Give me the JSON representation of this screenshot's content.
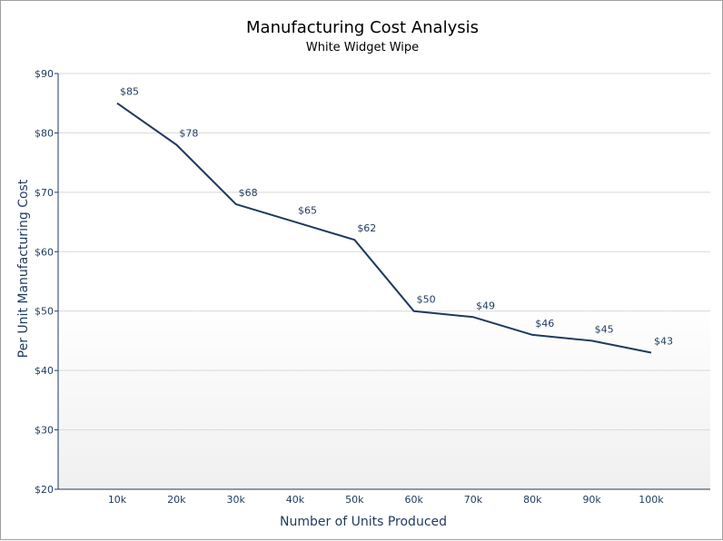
{
  "chart_data": {
    "type": "line",
    "title": "Manufacturing Cost Analysis",
    "subtitle": "White Widget Wipe",
    "xlabel": "Number of Units Produced",
    "ylabel": "Per Unit Manufacturing Cost",
    "categories": [
      "10k",
      "20k",
      "30k",
      "40k",
      "50k",
      "60k",
      "70k",
      "80k",
      "90k",
      "100k"
    ],
    "values": [
      85,
      78,
      68,
      65,
      62,
      50,
      49,
      46,
      45,
      43
    ],
    "value_labels": [
      "$85",
      "$78",
      "$68",
      "$65",
      "$62",
      "$50",
      "$49",
      "$46",
      "$45",
      "$43"
    ],
    "yticks": [
      20,
      30,
      40,
      50,
      60,
      70,
      80,
      90
    ],
    "ytick_labels": [
      "$20",
      "$30",
      "$40",
      "$50",
      "$60",
      "$70",
      "$80",
      "$90"
    ],
    "ylim": [
      20,
      90
    ],
    "grid": true,
    "line_color": "#1f3a5f"
  }
}
